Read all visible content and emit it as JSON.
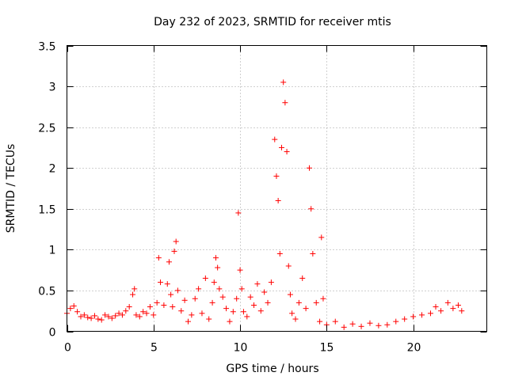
{
  "chart_data": {
    "type": "scatter",
    "title": "Day 232 of 2023, SRMTID for receiver mtis",
    "xlabel": "GPS time / hours",
    "ylabel": "SRMTID / TECUs",
    "xlim": [
      0,
      24.25
    ],
    "ylim": [
      0,
      3.5
    ],
    "grid": true,
    "marker": "+",
    "color": "#ff0000",
    "x_ticks": [
      0,
      5,
      10,
      15,
      20
    ],
    "y_ticks": [
      0,
      0.5,
      1,
      1.5,
      2,
      2.5,
      3,
      3.5
    ],
    "x_tick_labels": [
      "0",
      "5",
      "10",
      "15",
      "20"
    ],
    "y_tick_labels": [
      "0",
      "0.5",
      "1",
      "1.5",
      "2",
      "2.5",
      "3",
      "3.5"
    ],
    "series": [
      {
        "name": "SRMTID",
        "x": [
          0.0,
          0.2,
          0.4,
          0.6,
          0.8,
          1.0,
          1.2,
          1.4,
          1.6,
          1.8,
          2.0,
          2.2,
          2.4,
          2.6,
          2.8,
          3.0,
          3.2,
          3.4,
          3.6,
          3.8,
          3.9,
          4.0,
          4.2,
          4.4,
          4.6,
          4.8,
          5.0,
          5.2,
          5.3,
          5.4,
          5.6,
          5.8,
          5.9,
          6.0,
          6.1,
          6.2,
          6.3,
          6.4,
          6.6,
          6.8,
          7.0,
          7.2,
          7.4,
          7.6,
          7.8,
          8.0,
          8.2,
          8.4,
          8.5,
          8.6,
          8.7,
          8.8,
          9.0,
          9.2,
          9.4,
          9.6,
          9.8,
          9.9,
          10.0,
          10.1,
          10.2,
          10.4,
          10.6,
          10.8,
          11.0,
          11.2,
          11.4,
          11.6,
          11.8,
          12.0,
          12.1,
          12.2,
          12.3,
          12.4,
          12.5,
          12.6,
          12.7,
          12.8,
          12.9,
          13.0,
          13.2,
          13.4,
          13.6,
          13.8,
          14.0,
          14.1,
          14.2,
          14.4,
          14.6,
          14.7,
          14.8,
          15.0,
          15.5,
          16.0,
          16.5,
          17.0,
          17.5,
          18.0,
          18.5,
          19.0,
          19.5,
          20.0,
          20.5,
          21.0,
          21.3,
          21.6,
          22.0,
          22.3,
          22.6,
          22.8
        ],
        "y": [
          0.22,
          0.28,
          0.31,
          0.24,
          0.18,
          0.2,
          0.17,
          0.16,
          0.19,
          0.15,
          0.14,
          0.2,
          0.18,
          0.16,
          0.19,
          0.22,
          0.2,
          0.25,
          0.3,
          0.45,
          0.52,
          0.2,
          0.18,
          0.24,
          0.22,
          0.3,
          0.2,
          0.35,
          0.9,
          0.6,
          0.32,
          0.58,
          0.85,
          0.45,
          0.3,
          0.98,
          1.1,
          0.5,
          0.25,
          0.38,
          0.12,
          0.2,
          0.4,
          0.52,
          0.22,
          0.65,
          0.15,
          0.35,
          0.6,
          0.9,
          0.78,
          0.52,
          0.42,
          0.28,
          0.12,
          0.24,
          0.4,
          1.45,
          0.75,
          0.52,
          0.24,
          0.18,
          0.42,
          0.32,
          0.58,
          0.25,
          0.48,
          0.35,
          0.6,
          2.35,
          1.9,
          1.6,
          0.95,
          2.25,
          3.05,
          2.8,
          2.2,
          0.8,
          0.45,
          0.22,
          0.15,
          0.35,
          0.65,
          0.28,
          2.0,
          1.5,
          0.95,
          0.35,
          0.12,
          1.15,
          0.4,
          0.08,
          0.12,
          0.05,
          0.09,
          0.06,
          0.1,
          0.07,
          0.08,
          0.12,
          0.15,
          0.18,
          0.2,
          0.22,
          0.3,
          0.25,
          0.35,
          0.28,
          0.32,
          0.25
        ]
      }
    ]
  }
}
